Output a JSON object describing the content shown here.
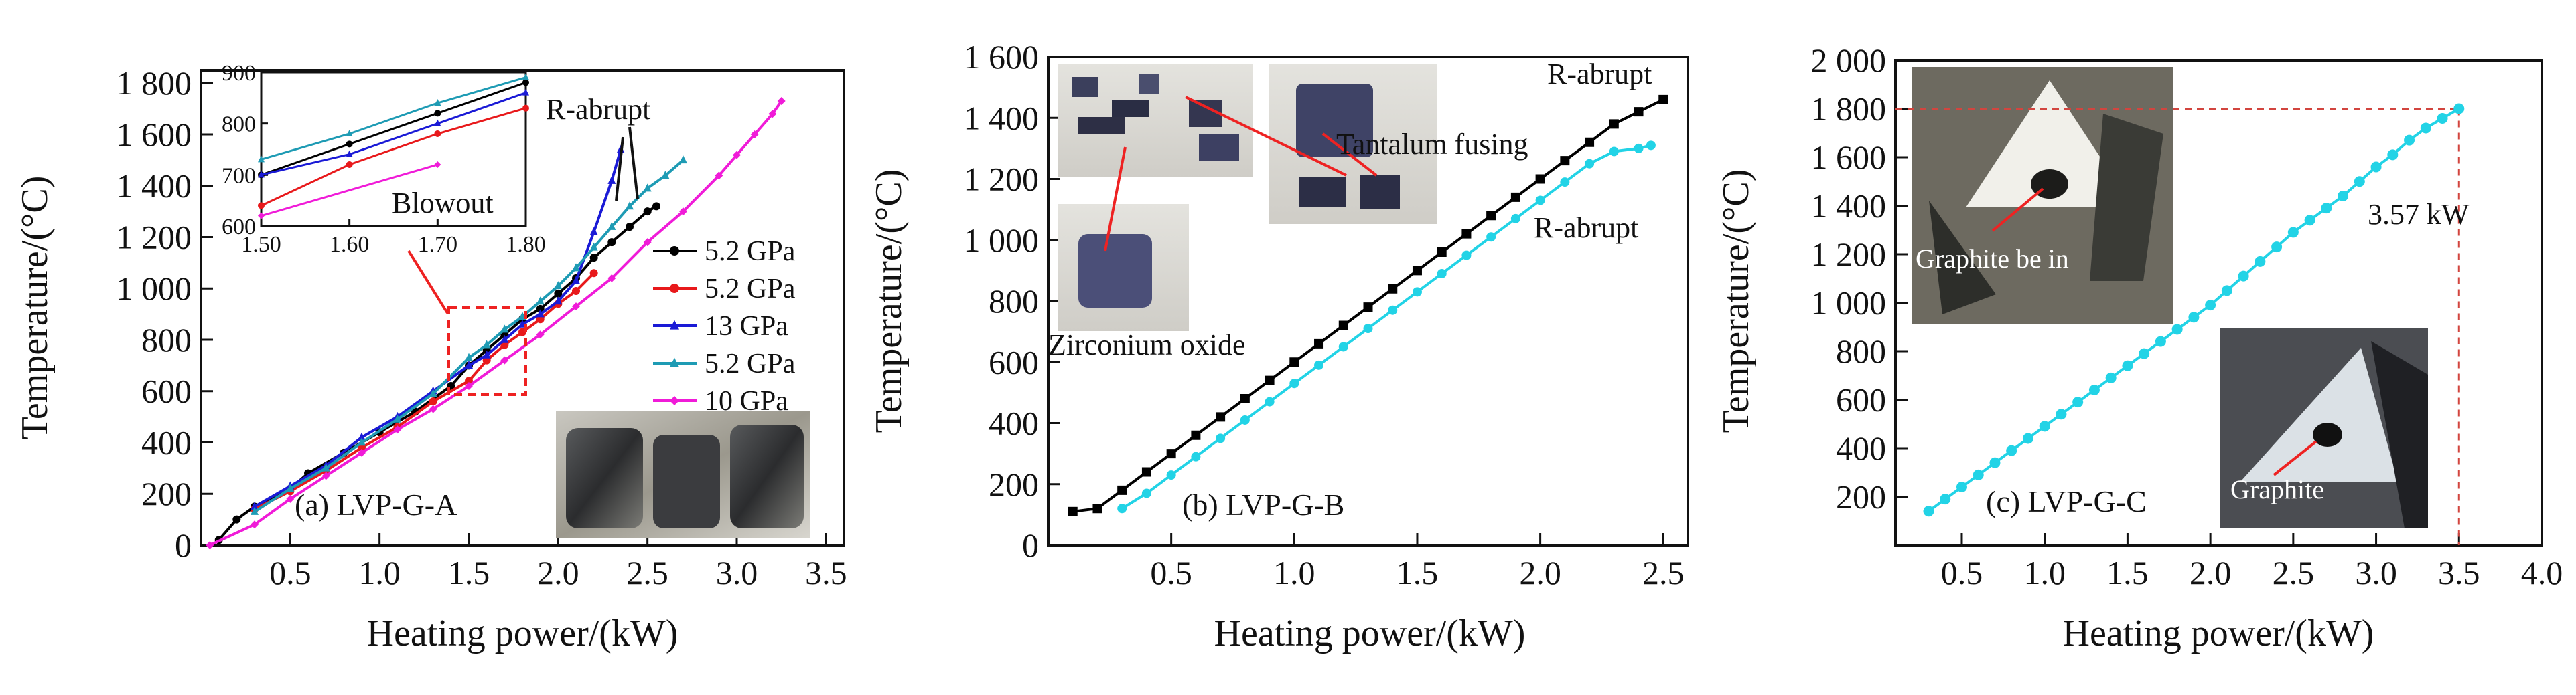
{
  "chart_data": [
    {
      "type": "line",
      "panel_label": "(a) LVP-G-A",
      "xlabel": "Heating power/(kW)",
      "ylabel": "Temperature/(°C)",
      "xlim": [
        0,
        3.6
      ],
      "ylim": [
        0,
        1850
      ],
      "xticks": [
        0.5,
        1.0,
        1.5,
        2.0,
        2.5,
        3.0,
        3.5
      ],
      "xtick_labels": [
        "0.5",
        "1.0",
        "1.5",
        "2.0",
        "2.5",
        "3.0",
        "3.5"
      ],
      "yticks": [
        0,
        200,
        400,
        600,
        800,
        1000,
        1200,
        1400,
        1600,
        1800
      ],
      "ytick_labels": [
        "0",
        "200",
        "400",
        "600",
        "800",
        "1 000",
        "1 200",
        "1 400",
        "1 600",
        "1 800"
      ],
      "legend_position": "center-right",
      "annotation": "R-abrupt",
      "series": [
        {
          "name": "5.2 GPa",
          "color": "#000000",
          "marker": "circle",
          "x": [
            0.1,
            0.2,
            0.3,
            0.5,
            0.6,
            0.8,
            1.0,
            1.2,
            1.4,
            1.5,
            1.6,
            1.7,
            1.8,
            1.9,
            2.0,
            2.1,
            2.2,
            2.3,
            2.4,
            2.5,
            2.55
          ],
          "y": [
            20,
            100,
            150,
            220,
            280,
            360,
            440,
            520,
            620,
            700,
            760,
            820,
            880,
            920,
            980,
            1040,
            1120,
            1180,
            1240,
            1300,
            1320
          ]
        },
        {
          "name": "5.2 GPa",
          "color": "#e8191b",
          "marker": "circle",
          "x": [
            0.3,
            0.5,
            0.7,
            0.9,
            1.1,
            1.3,
            1.5,
            1.6,
            1.7,
            1.8,
            1.9,
            2.0,
            2.1,
            2.2
          ],
          "y": [
            140,
            210,
            290,
            380,
            460,
            560,
            640,
            720,
            780,
            830,
            880,
            940,
            990,
            1060
          ]
        },
        {
          "name": "13 GPa",
          "color": "#1a1ad6",
          "marker": "triangle",
          "x": [
            0.3,
            0.5,
            0.7,
            0.9,
            1.1,
            1.3,
            1.5,
            1.6,
            1.7,
            1.8,
            1.9,
            2.0,
            2.1,
            2.2,
            2.3,
            2.35
          ],
          "y": [
            150,
            230,
            310,
            420,
            500,
            600,
            700,
            740,
            800,
            860,
            900,
            950,
            1030,
            1220,
            1420,
            1540
          ]
        },
        {
          "name": "5.2 GPa",
          "color": "#1e9bb4",
          "marker": "triangle",
          "x": [
            0.3,
            0.5,
            0.7,
            0.9,
            1.1,
            1.3,
            1.5,
            1.6,
            1.7,
            1.8,
            1.9,
            2.0,
            2.1,
            2.2,
            2.3,
            2.4,
            2.5,
            2.6,
            2.7
          ],
          "y": [
            130,
            220,
            300,
            400,
            490,
            590,
            730,
            780,
            840,
            890,
            950,
            1010,
            1080,
            1160,
            1240,
            1320,
            1390,
            1440,
            1500
          ]
        },
        {
          "name": "10 GPa",
          "color": "#f01bd8",
          "marker": "diamond",
          "x": [
            0.05,
            0.3,
            0.5,
            0.7,
            0.9,
            1.1,
            1.3,
            1.5,
            1.7,
            1.9,
            2.1,
            2.3,
            2.5,
            2.7,
            2.9,
            3.0,
            3.1,
            3.2,
            3.25
          ],
          "y": [
            0,
            80,
            180,
            270,
            360,
            450,
            530,
            620,
            720,
            820,
            930,
            1040,
            1180,
            1300,
            1440,
            1520,
            1600,
            1680,
            1730
          ]
        }
      ],
      "inset": {
        "xlim": [
          1.5,
          1.8
        ],
        "ylim": [
          600,
          900
        ],
        "xticks": [
          1.5,
          1.6,
          1.7,
          1.8
        ],
        "xtick_labels": [
          "1.50",
          "1.60",
          "1.70",
          "1.80"
        ],
        "yticks": [
          600,
          700,
          800,
          900
        ],
        "ytick_labels": [
          "600",
          "700",
          "800",
          "900"
        ],
        "label": "Blowout"
      }
    },
    {
      "type": "line",
      "panel_label": "(b) LVP-G-B",
      "xlabel": "Heating power/(kW)",
      "ylabel": "Temperature/(°C)",
      "xlim": [
        0,
        2.6
      ],
      "ylim": [
        0,
        1600
      ],
      "xticks": [
        0.5,
        1.0,
        1.5,
        2.0,
        2.5
      ],
      "xtick_labels": [
        "0.5",
        "1.0",
        "1.5",
        "2.0",
        "2.5"
      ],
      "yticks": [
        0,
        200,
        400,
        600,
        800,
        1000,
        1200,
        1400,
        1600
      ],
      "ytick_labels": [
        "0",
        "200",
        "400",
        "600",
        "800",
        "1 000",
        "1 200",
        "1 400",
        "1 600"
      ],
      "annotations": [
        "R-abrupt",
        "R-abrupt",
        "Tantalum fusing",
        "Zirconium oxide"
      ],
      "series": [
        {
          "color": "#000000",
          "marker": "square",
          "x": [
            0.1,
            0.2,
            0.3,
            0.4,
            0.5,
            0.6,
            0.7,
            0.8,
            0.9,
            1.0,
            1.1,
            1.2,
            1.3,
            1.4,
            1.5,
            1.6,
            1.7,
            1.8,
            1.9,
            2.0,
            2.1,
            2.2,
            2.3,
            2.4,
            2.5
          ],
          "y": [
            110,
            120,
            180,
            240,
            300,
            360,
            420,
            480,
            540,
            600,
            660,
            720,
            780,
            840,
            900,
            960,
            1020,
            1080,
            1140,
            1200,
            1260,
            1320,
            1380,
            1420,
            1460
          ]
        },
        {
          "color": "#22d3e6",
          "marker": "circle",
          "x": [
            0.3,
            0.4,
            0.5,
            0.6,
            0.7,
            0.8,
            0.9,
            1.0,
            1.1,
            1.2,
            1.3,
            1.4,
            1.5,
            1.6,
            1.7,
            1.8,
            1.9,
            2.0,
            2.1,
            2.2,
            2.3,
            2.4,
            2.45
          ],
          "y": [
            120,
            170,
            230,
            290,
            350,
            410,
            470,
            530,
            590,
            650,
            710,
            770,
            830,
            890,
            950,
            1010,
            1070,
            1130,
            1190,
            1250,
            1290,
            1300,
            1310
          ]
        }
      ]
    },
    {
      "type": "line",
      "panel_label": "(c) LVP-G-C",
      "xlabel": "Heating power/(kW)",
      "ylabel": "Temperature/(°C)",
      "xlim": [
        0.1,
        4.0
      ],
      "ylim": [
        0,
        2000
      ],
      "xticks": [
        0.5,
        1.0,
        1.5,
        2.0,
        2.5,
        3.0,
        3.5,
        4.0
      ],
      "xtick_labels": [
        "0.5",
        "1.0",
        "1.5",
        "2.0",
        "2.5",
        "3.0",
        "3.5",
        "4.0"
      ],
      "yticks": [
        200,
        400,
        600,
        800,
        1000,
        1200,
        1400,
        1600,
        1800,
        2000
      ],
      "ytick_labels": [
        "200",
        "400",
        "600",
        "800",
        "1 000",
        "1 200",
        "1 400",
        "1 600",
        "1 800",
        "2 000"
      ],
      "annotations": [
        "3.57 kW",
        "Graphite be in",
        "Graphite"
      ],
      "reference_point": {
        "x": 3.5,
        "y": 1800
      },
      "series": [
        {
          "color": "#22d3e6",
          "marker": "circle",
          "x": [
            0.3,
            0.4,
            0.5,
            0.6,
            0.7,
            0.8,
            0.9,
            1.0,
            1.1,
            1.2,
            1.3,
            1.4,
            1.5,
            1.6,
            1.7,
            1.8,
            1.9,
            2.0,
            2.1,
            2.2,
            2.3,
            2.4,
            2.5,
            2.6,
            2.7,
            2.8,
            2.9,
            3.0,
            3.1,
            3.2,
            3.3,
            3.4,
            3.5
          ],
          "y": [
            140,
            190,
            240,
            290,
            340,
            390,
            440,
            490,
            540,
            590,
            640,
            690,
            740,
            790,
            840,
            890,
            940,
            990,
            1050,
            1110,
            1170,
            1230,
            1290,
            1340,
            1390,
            1440,
            1500,
            1560,
            1610,
            1670,
            1720,
            1760,
            1800
          ]
        }
      ]
    }
  ]
}
